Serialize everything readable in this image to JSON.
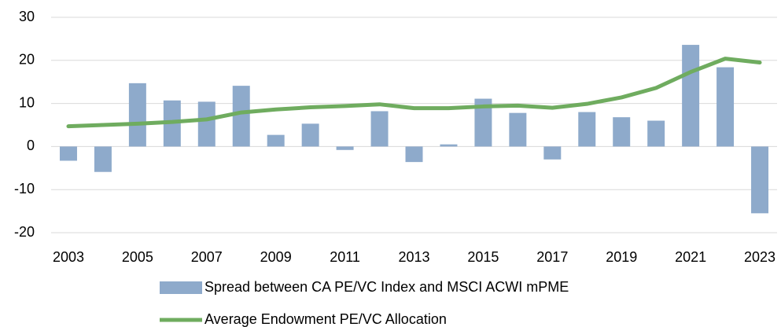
{
  "chart_data": {
    "type": "combo",
    "categories": [
      "2003",
      null,
      "2005",
      null,
      "2007",
      null,
      "2009",
      null,
      "2011",
      null,
      "2013",
      null,
      "2015",
      null,
      "2017",
      null,
      "2019",
      null,
      "2021",
      null,
      "2023"
    ],
    "series": [
      {
        "name": "Spread between CA PE/VC Index and MSCI ACWI mPME",
        "type": "bar",
        "color": "#8eaacb",
        "values": [
          -3.3,
          -5.9,
          14.7,
          10.7,
          10.4,
          14.1,
          2.7,
          5.3,
          -0.8,
          8.2,
          -3.6,
          0.5,
          11.1,
          7.8,
          -3.0,
          8.0,
          6.8,
          6.0,
          23.6,
          18.4,
          -15.5
        ]
      },
      {
        "name": "Average Endowment PE/VC Allocation",
        "type": "line",
        "color": "#6fac5f",
        "values": [
          4.7,
          5.0,
          5.3,
          5.7,
          6.3,
          7.9,
          8.6,
          9.1,
          9.4,
          9.8,
          8.9,
          8.9,
          9.3,
          9.5,
          9.0,
          9.9,
          11.4,
          13.6,
          17.3,
          20.4,
          19.5
        ]
      }
    ],
    "ylim": [
      -20,
      30
    ],
    "yticks": [
      -20,
      -10,
      0,
      10,
      20,
      30
    ],
    "grid": true,
    "legend": "bottom"
  }
}
